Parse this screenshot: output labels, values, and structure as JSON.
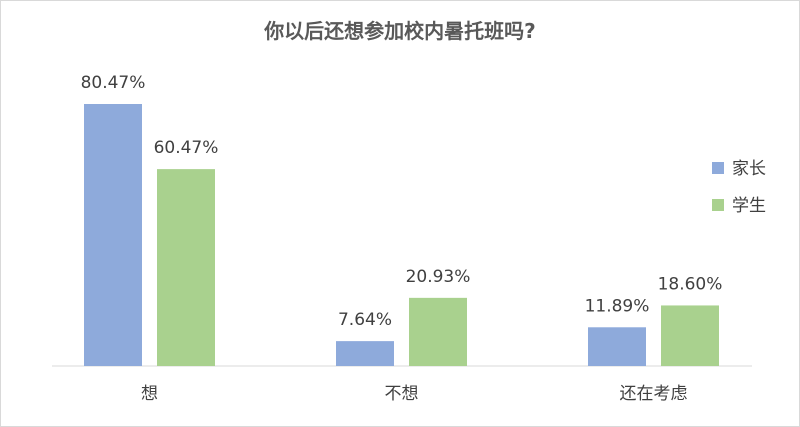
{
  "chart_data": {
    "type": "bar",
    "title": "你以后还想参加校内暑托班吗?",
    "categories": [
      "想",
      "不想",
      "还在考虑"
    ],
    "series": [
      {
        "name": "家长",
        "values": [
          80.47,
          7.64,
          11.89
        ],
        "labels": [
          "80.47%",
          "7.64%",
          "11.89%"
        ],
        "color": "#8eaadb"
      },
      {
        "name": "学生",
        "values": [
          60.47,
          20.93,
          18.6
        ],
        "labels": [
          "60.47%",
          "20.93%",
          "18.60%"
        ],
        "color": "#a9d18e"
      }
    ],
    "ylim": [
      0,
      80.47
    ],
    "grid": false,
    "legend_position": "right",
    "xlabel": "",
    "ylabel": ""
  }
}
